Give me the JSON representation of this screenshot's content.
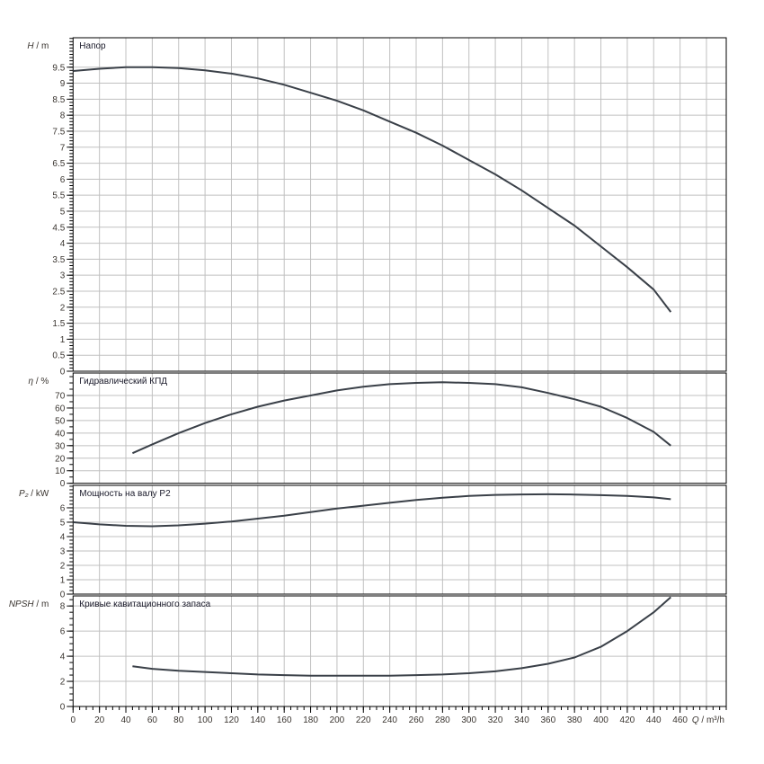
{
  "chart_data": [
    {
      "type": "line",
      "title": "Напор",
      "ylabel_symbol": "H",
      "ylabel_unit": " / m",
      "ylim": [
        0,
        10.42
      ],
      "yticks": [
        0,
        0.5,
        1,
        1.5,
        2,
        2.5,
        3,
        3.5,
        4,
        4.5,
        5,
        5.5,
        6,
        6.5,
        7,
        7.5,
        8,
        8.5,
        9,
        9.5
      ],
      "yminor": 0.1,
      "grid": true,
      "color": "#3a4048",
      "x": [
        0,
        20,
        40,
        60,
        80,
        100,
        120,
        140,
        160,
        180,
        200,
        220,
        240,
        260,
        280,
        300,
        320,
        340,
        360,
        380,
        400,
        420,
        440,
        453
      ],
      "y": [
        9.38,
        9.45,
        9.5,
        9.5,
        9.47,
        9.4,
        9.3,
        9.15,
        8.95,
        8.7,
        8.45,
        8.15,
        7.8,
        7.45,
        7.05,
        6.6,
        6.15,
        5.65,
        5.1,
        4.55,
        3.9,
        3.25,
        2.55,
        1.85
      ]
    },
    {
      "type": "line",
      "title": "Гидравлический КПД",
      "ylabel_symbol": "η",
      "ylabel_unit": " / %",
      "ylim": [
        0,
        87.9
      ],
      "yticks": [
        0,
        10,
        20,
        30,
        40,
        50,
        60,
        70
      ],
      "yminor": 5,
      "grid": true,
      "color": "#3a4048",
      "x": [
        45,
        60,
        80,
        100,
        120,
        140,
        160,
        180,
        200,
        220,
        240,
        260,
        280,
        300,
        320,
        340,
        360,
        380,
        400,
        420,
        440,
        453
      ],
      "y": [
        24,
        31,
        40,
        48,
        55,
        61,
        66,
        70,
        74,
        77,
        79,
        80,
        80.5,
        80,
        79,
        76.5,
        72,
        67,
        61,
        52,
        41,
        30
      ]
    },
    {
      "type": "line",
      "title": "Мощность на валу P2",
      "ylabel_symbol": "P₂",
      "ylabel_unit": " / kW",
      "ylim": [
        0,
        7.56
      ],
      "yticks": [
        0,
        1,
        2,
        3,
        4,
        5,
        6
      ],
      "yminor": 0.25,
      "grid": true,
      "color": "#3a4048",
      "x": [
        0,
        20,
        40,
        60,
        80,
        100,
        120,
        140,
        160,
        180,
        200,
        220,
        240,
        260,
        280,
        300,
        320,
        340,
        360,
        380,
        400,
        420,
        440,
        453
      ],
      "y": [
        5.0,
        4.85,
        4.75,
        4.72,
        4.78,
        4.9,
        5.05,
        5.25,
        5.45,
        5.7,
        5.95,
        6.15,
        6.35,
        6.55,
        6.7,
        6.82,
        6.9,
        6.93,
        6.94,
        6.92,
        6.88,
        6.82,
        6.72,
        6.6
      ]
    },
    {
      "type": "line",
      "title": "Кривые кавитационного запаса",
      "ylabel_symbol": "NPSH",
      "ylabel_unit": " / m",
      "ylim": [
        0,
        8.8
      ],
      "yticks": [
        0,
        2,
        4,
        6,
        8
      ],
      "yminor": 0.5,
      "grid": true,
      "color": "#3a4048",
      "x": [
        45,
        60,
        80,
        100,
        120,
        140,
        160,
        180,
        200,
        220,
        240,
        260,
        280,
        300,
        320,
        340,
        360,
        380,
        400,
        420,
        440,
        453
      ],
      "y": [
        3.2,
        3.0,
        2.85,
        2.75,
        2.65,
        2.55,
        2.5,
        2.45,
        2.45,
        2.45,
        2.45,
        2.5,
        2.55,
        2.65,
        2.8,
        3.05,
        3.4,
        3.9,
        4.75,
        6.0,
        7.5,
        8.7
      ]
    }
  ],
  "xaxis": {
    "label_symbol": "Q",
    "label_unit": " / m³/h",
    "xlim": [
      0,
      495
    ],
    "xticks": [
      0,
      20,
      40,
      60,
      80,
      100,
      120,
      140,
      160,
      180,
      200,
      220,
      240,
      260,
      280,
      300,
      320,
      340,
      360,
      380,
      400,
      420,
      440,
      460
    ],
    "xminor": 5
  }
}
